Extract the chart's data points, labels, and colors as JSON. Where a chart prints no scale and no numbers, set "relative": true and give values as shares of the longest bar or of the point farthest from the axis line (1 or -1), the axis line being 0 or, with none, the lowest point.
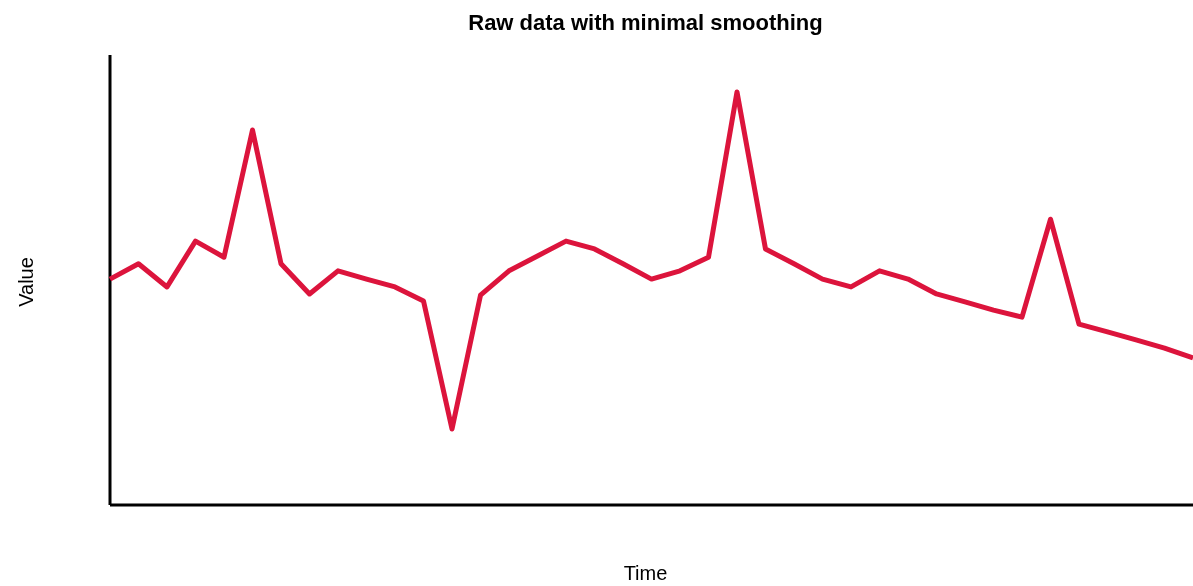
{
  "chart_data": {
    "type": "line",
    "title": "Raw data with minimal smoothing",
    "xlabel": "Time",
    "ylabel": "Value",
    "relative": true,
    "categories": [
      null,
      null,
      null,
      null,
      null,
      null,
      null,
      null,
      null,
      null,
      null,
      null,
      null,
      null,
      null,
      null,
      null,
      null,
      null,
      null,
      null,
      null,
      null,
      null,
      null,
      null,
      null,
      null,
      null,
      null,
      null,
      null,
      null,
      null,
      null,
      null,
      null,
      null,
      null
    ],
    "series": [
      {
        "color": "#dc143c",
        "values": [
          0.547,
          0.584,
          0.528,
          0.639,
          0.6,
          0.908,
          0.584,
          0.511,
          0.567,
          0.547,
          0.528,
          0.494,
          0.184,
          0.508,
          0.567,
          0.603,
          0.639,
          0.62,
          0.584,
          0.547,
          0.567,
          0.6,
          1,
          0.62,
          0.584,
          0.547,
          0.528,
          0.567,
          0.547,
          0.511,
          0.492,
          0.472,
          0.455,
          0.692,
          0.438,
          0.419,
          0.4,
          0.38,
          0.356
        ]
      }
    ],
    "marker": "none",
    "line_style": "solid"
  }
}
